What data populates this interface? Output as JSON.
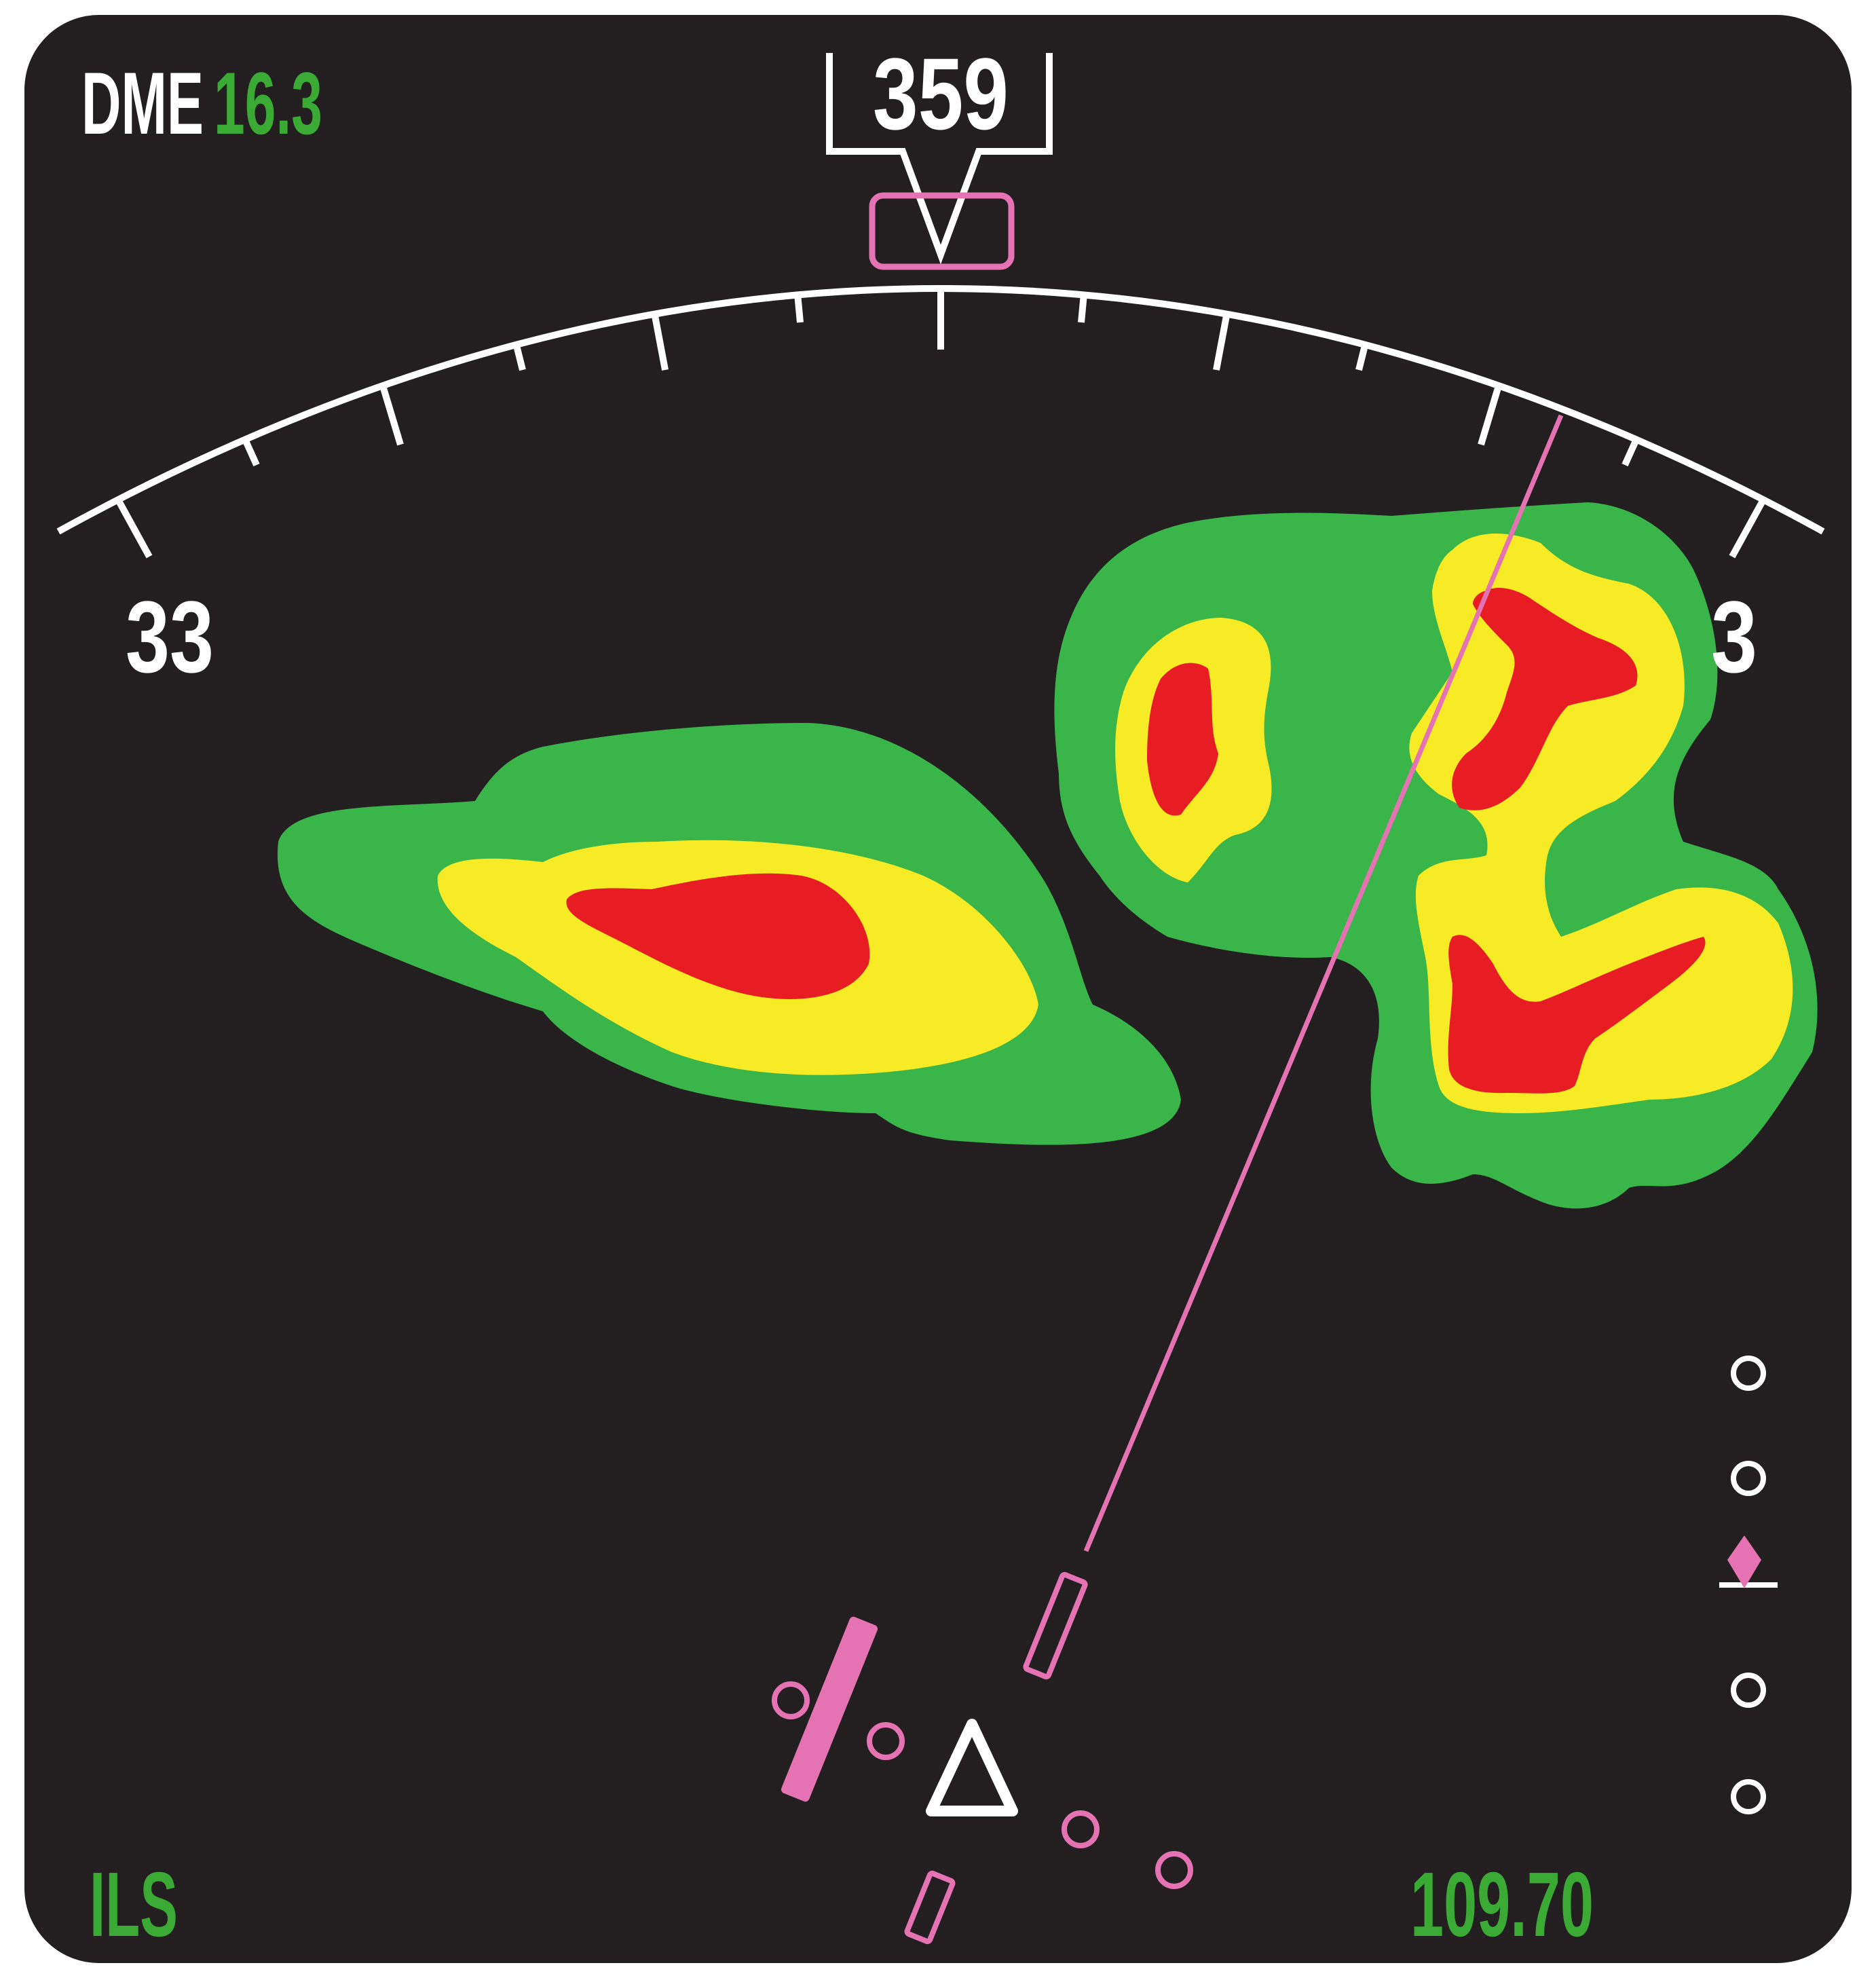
{
  "dme": {
    "label": "DME",
    "value": "16.3"
  },
  "heading": {
    "value": "359"
  },
  "compass": {
    "left_label": "33",
    "right_label": "3"
  },
  "nav_mode": "ILS",
  "frequency": "109.70",
  "glideslope": {
    "pointer_position": "slightly below center"
  },
  "colors": {
    "background": "#231f20",
    "scale": "#ffffff",
    "value_green": "#3aaa35",
    "magenta": "#e573b3",
    "weather_green": "#3ab54a",
    "weather_yellow": "#f6eb25",
    "weather_red": "#e71d23"
  }
}
